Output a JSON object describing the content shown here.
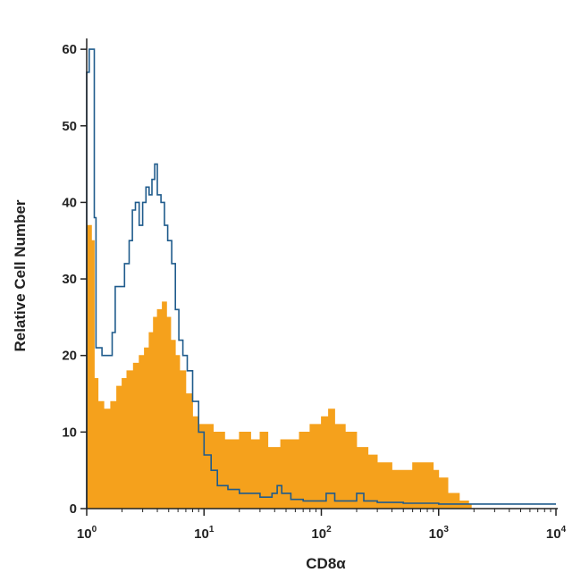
{
  "chart_data": {
    "type": "area",
    "xlabel": "CD8α",
    "ylabel": "Relative Cell Number",
    "x_scale": "log",
    "xlim": [
      1,
      10000
    ],
    "ylim": [
      0,
      62
    ],
    "x_ticks": [
      {
        "value": 1,
        "base": "10",
        "exp": "0"
      },
      {
        "value": 10,
        "base": "10",
        "exp": "1"
      },
      {
        "value": 100,
        "base": "10",
        "exp": "2"
      },
      {
        "value": 1000,
        "base": "10",
        "exp": "3"
      },
      {
        "value": 10000,
        "base": "10",
        "exp": "4"
      }
    ],
    "y_ticks": [
      0,
      10,
      20,
      30,
      40,
      50,
      60
    ],
    "grid": false,
    "series": [
      {
        "style": "outline",
        "color": "#1f5b8c",
        "points": [
          [
            1.0,
            57
          ],
          [
            1.05,
            60
          ],
          [
            1.12,
            60
          ],
          [
            1.16,
            38
          ],
          [
            1.2,
            21
          ],
          [
            1.35,
            20
          ],
          [
            1.5,
            20
          ],
          [
            1.65,
            23
          ],
          [
            1.75,
            29
          ],
          [
            1.9,
            29
          ],
          [
            2.1,
            32
          ],
          [
            2.3,
            35
          ],
          [
            2.45,
            39
          ],
          [
            2.6,
            40
          ],
          [
            2.8,
            37
          ],
          [
            3.0,
            40
          ],
          [
            3.2,
            42
          ],
          [
            3.4,
            41
          ],
          [
            3.6,
            43
          ],
          [
            3.8,
            45
          ],
          [
            4.0,
            41
          ],
          [
            4.3,
            40
          ],
          [
            4.6,
            37
          ],
          [
            4.9,
            35
          ],
          [
            5.3,
            32
          ],
          [
            5.7,
            26
          ],
          [
            6.1,
            22
          ],
          [
            6.6,
            20
          ],
          [
            7.2,
            18
          ],
          [
            8.0,
            14
          ],
          [
            9.0,
            10
          ],
          [
            10,
            7
          ],
          [
            11.5,
            5
          ],
          [
            13,
            3
          ],
          [
            16,
            2.5
          ],
          [
            20,
            2
          ],
          [
            25,
            2
          ],
          [
            30,
            1.5
          ],
          [
            38,
            2
          ],
          [
            42,
            3
          ],
          [
            46,
            2
          ],
          [
            55,
            1.2
          ],
          [
            70,
            1
          ],
          [
            90,
            1
          ],
          [
            110,
            2
          ],
          [
            130,
            1
          ],
          [
            170,
            1
          ],
          [
            200,
            2
          ],
          [
            230,
            1
          ],
          [
            300,
            0.8
          ],
          [
            500,
            0.7
          ],
          [
            1000,
            0.6
          ],
          [
            2000,
            0.6
          ],
          [
            5000,
            0.6
          ],
          [
            10000,
            0.6
          ]
        ]
      },
      {
        "style": "filled",
        "color": "#f5a11c",
        "points": [
          [
            1.0,
            37
          ],
          [
            1.1,
            35
          ],
          [
            1.16,
            17
          ],
          [
            1.25,
            14
          ],
          [
            1.4,
            13
          ],
          [
            1.6,
            14
          ],
          [
            1.8,
            16
          ],
          [
            2.0,
            17
          ],
          [
            2.2,
            18
          ],
          [
            2.5,
            19
          ],
          [
            2.8,
            20
          ],
          [
            3.1,
            21
          ],
          [
            3.4,
            23
          ],
          [
            3.7,
            25
          ],
          [
            4.0,
            26
          ],
          [
            4.4,
            27
          ],
          [
            4.8,
            25
          ],
          [
            5.2,
            22
          ],
          [
            5.7,
            20
          ],
          [
            6.2,
            18
          ],
          [
            7.0,
            15
          ],
          [
            8.0,
            12
          ],
          [
            9.0,
            11
          ],
          [
            10,
            11
          ],
          [
            12,
            10
          ],
          [
            15,
            9
          ],
          [
            20,
            10
          ],
          [
            25,
            9
          ],
          [
            30,
            10
          ],
          [
            35,
            8
          ],
          [
            40,
            8
          ],
          [
            45,
            9
          ],
          [
            55,
            9
          ],
          [
            65,
            10
          ],
          [
            80,
            11
          ],
          [
            100,
            12
          ],
          [
            115,
            13
          ],
          [
            130,
            11
          ],
          [
            160,
            10
          ],
          [
            200,
            8
          ],
          [
            250,
            7
          ],
          [
            300,
            6
          ],
          [
            400,
            5
          ],
          [
            500,
            5
          ],
          [
            600,
            6
          ],
          [
            700,
            6
          ],
          [
            800,
            6
          ],
          [
            900,
            5
          ],
          [
            1000,
            4
          ],
          [
            1200,
            2
          ],
          [
            1500,
            1
          ],
          [
            1800,
            0.5
          ],
          [
            1900,
            0
          ]
        ]
      }
    ]
  }
}
